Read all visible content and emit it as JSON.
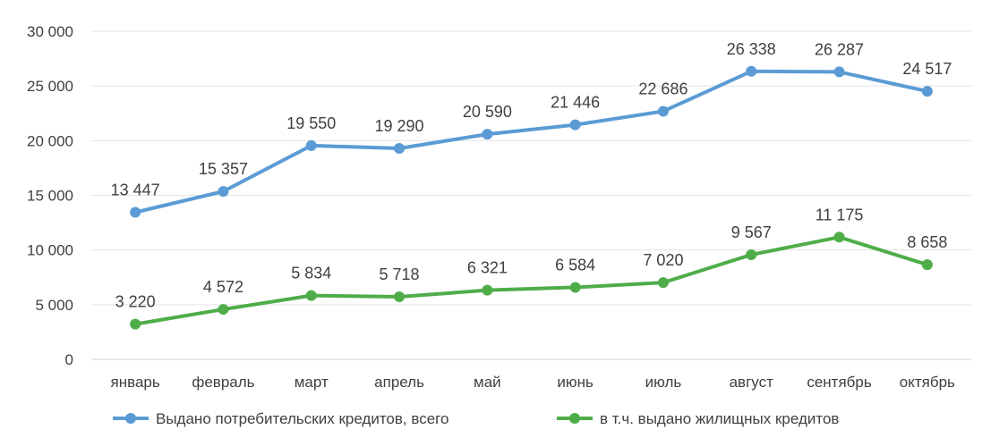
{
  "chart_data": {
    "type": "line",
    "title": "",
    "xlabel": "",
    "ylabel": "",
    "ylim": [
      0,
      30000
    ],
    "yticks": [
      0,
      5000,
      10000,
      15000,
      20000,
      25000,
      30000
    ],
    "ytick_labels": [
      "0",
      "5 000",
      "10 000",
      "15 000",
      "20 000",
      "25 000",
      "30 000"
    ],
    "grid": true,
    "legend_position": "bottom",
    "categories": [
      "январь",
      "февраль",
      "март",
      "апрель",
      "май",
      "июнь",
      "июль",
      "август",
      "сентябрь",
      "октябрь"
    ],
    "series": [
      {
        "name": "Выдано потребительских кредитов, всего",
        "color": "#5B9BD5",
        "values": [
          13447,
          15357,
          19550,
          19290,
          20590,
          21446,
          22686,
          26338,
          26287,
          24517
        ],
        "labels": [
          "13 447",
          "15 357",
          "19 550",
          "19 290",
          "20 590",
          "21 446",
          "22 686",
          "26 338",
          "26 287",
          "24 517"
        ]
      },
      {
        "name": "в т.ч. выдано жилищных кредитов",
        "color": "#4EAD49",
        "values": [
          3220,
          4572,
          5834,
          5718,
          6321,
          6584,
          7020,
          9567,
          11175,
          8658
        ],
        "labels": [
          "3 220",
          "4 572",
          "5 834",
          "5 718",
          "6 321",
          "6 584",
          "7 020",
          "9 567",
          "11 175",
          "8 658"
        ]
      }
    ]
  }
}
